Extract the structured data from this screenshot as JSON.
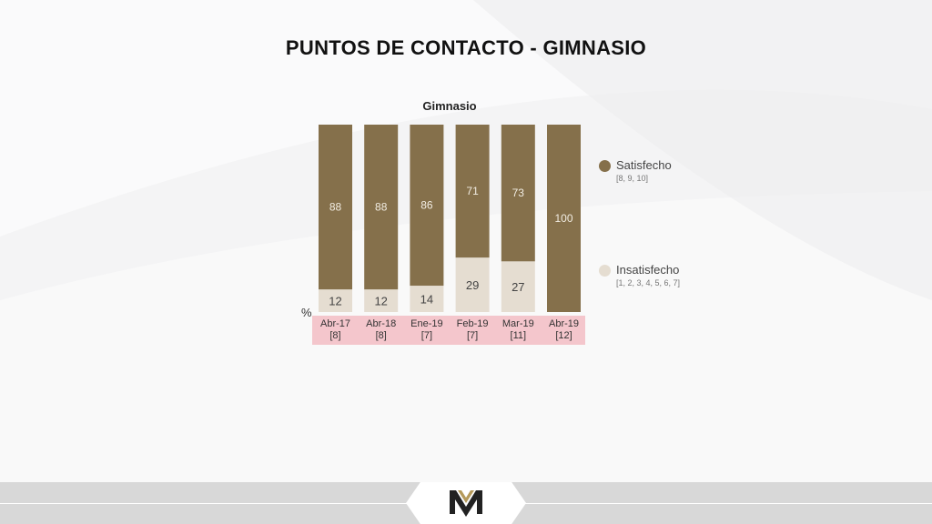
{
  "slide": {
    "title": "PUNTOS DE CONTACTO - GIMNASIO"
  },
  "chart_data": {
    "type": "bar",
    "stacked": true,
    "title": "Gimnasio",
    "ylabel": "%",
    "ylim": [
      0,
      100
    ],
    "categories": [
      "Abr-17",
      "Abr-18",
      "Ene-19",
      "Feb-19",
      "Mar-19",
      "Abr-19"
    ],
    "sample_sizes": [
      "[8]",
      "[8]",
      "[7]",
      "[7]",
      "[11]",
      "[12]"
    ],
    "series": [
      {
        "name": "Insatisfecho",
        "scale": "[1, 2, 3, 4, 5, 6, 7]",
        "color": "#e5ddd1",
        "values": [
          12,
          12,
          14,
          29,
          27,
          null
        ]
      },
      {
        "name": "Satisfecho",
        "scale": "[8, 9, 10]",
        "color": "#85704b",
        "values": [
          88,
          88,
          86,
          71,
          73,
          100
        ]
      }
    ],
    "legend_position": "right",
    "grid": false
  },
  "colors": {
    "satisfecho": "#85704b",
    "insatisfecho": "#e5ddd1",
    "category_band": "#f4c6cc"
  },
  "footer": {
    "logo_icon": "mv-logo-icon"
  }
}
